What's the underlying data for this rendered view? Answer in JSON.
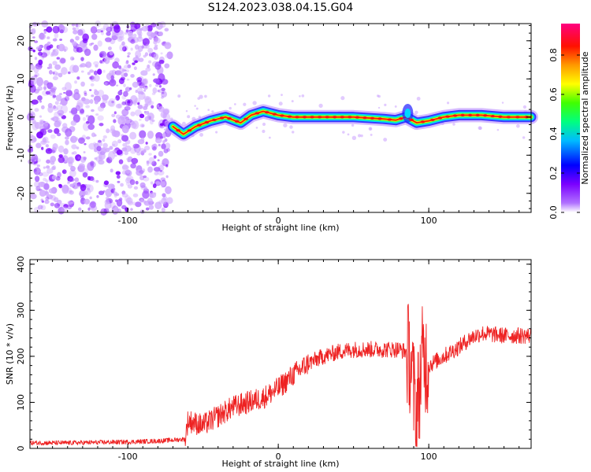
{
  "title": "S124.2023.038.04.15.G04",
  "chart_data": [
    {
      "type": "heatmap",
      "xlabel": "Height of straight line (km)",
      "ylabel": "Frequency (Hz)",
      "xlim": [
        -165,
        168
      ],
      "ylim": [
        -25,
        24.5
      ],
      "x_ticks": [
        -100,
        0,
        100
      ],
      "y_ticks": [
        -20,
        -10,
        0,
        10,
        20
      ],
      "colorbar": {
        "label": "Normalized spectral amplitude",
        "range": [
          0.0,
          0.96
        ],
        "ticks": [
          0.0,
          0.2,
          0.4,
          0.6,
          0.8
        ],
        "colormap": [
          "#ffffff",
          "#8a00ff",
          "#0000ff",
          "#00ffff",
          "#00ff00",
          "#ffff00",
          "#ff8000",
          "#ff0000",
          "#ff0080"
        ]
      },
      "noise_region_x": [
        -165,
        -72
      ],
      "signal_trace": [
        {
          "x": -70,
          "y": -2.5
        },
        {
          "x": -63,
          "y": -4.5
        },
        {
          "x": -55,
          "y": -2.5
        },
        {
          "x": -45,
          "y": -1
        },
        {
          "x": -35,
          "y": 0
        },
        {
          "x": -25,
          "y": -1.5
        },
        {
          "x": -18,
          "y": 0.5
        },
        {
          "x": -10,
          "y": 1.5
        },
        {
          "x": 0,
          "y": 0.5
        },
        {
          "x": 10,
          "y": 0
        },
        {
          "x": 30,
          "y": 0
        },
        {
          "x": 50,
          "y": 0
        },
        {
          "x": 70,
          "y": -0.5
        },
        {
          "x": 78,
          "y": -0.8
        },
        {
          "x": 85,
          "y": 0
        },
        {
          "x": 92,
          "y": -1.5
        },
        {
          "x": 100,
          "y": -1
        },
        {
          "x": 110,
          "y": 0
        },
        {
          "x": 120,
          "y": 0.5
        },
        {
          "x": 135,
          "y": 0.5
        },
        {
          "x": 150,
          "y": 0
        },
        {
          "x": 168,
          "y": 0
        }
      ]
    },
    {
      "type": "line",
      "xlabel": "Height of straight line (km)",
      "ylabel": "SNR (10 * v/v)",
      "xlim": [
        -165,
        168
      ],
      "ylim": [
        0,
        410
      ],
      "x_ticks": [
        -100,
        0,
        100
      ],
      "y_ticks": [
        0,
        100,
        200,
        300,
        400
      ],
      "series": [
        {
          "color": "#ee2222",
          "x": [
            -165,
            -140,
            -120,
            -100,
            -80,
            -62,
            -60,
            -50,
            -40,
            -30,
            -20,
            -10,
            0,
            10,
            20,
            30,
            40,
            50,
            60,
            70,
            80,
            85,
            88,
            90,
            92,
            94,
            96,
            100,
            110,
            120,
            128,
            135,
            150,
            168
          ],
          "values": [
            12,
            12,
            13,
            14,
            16,
            20,
            60,
            50,
            70,
            90,
            100,
            110,
            130,
            160,
            185,
            200,
            210,
            215,
            215,
            215,
            215,
            210,
            190,
            120,
            80,
            140,
            200,
            180,
            200,
            220,
            240,
            250,
            245,
            245
          ]
        }
      ]
    }
  ]
}
